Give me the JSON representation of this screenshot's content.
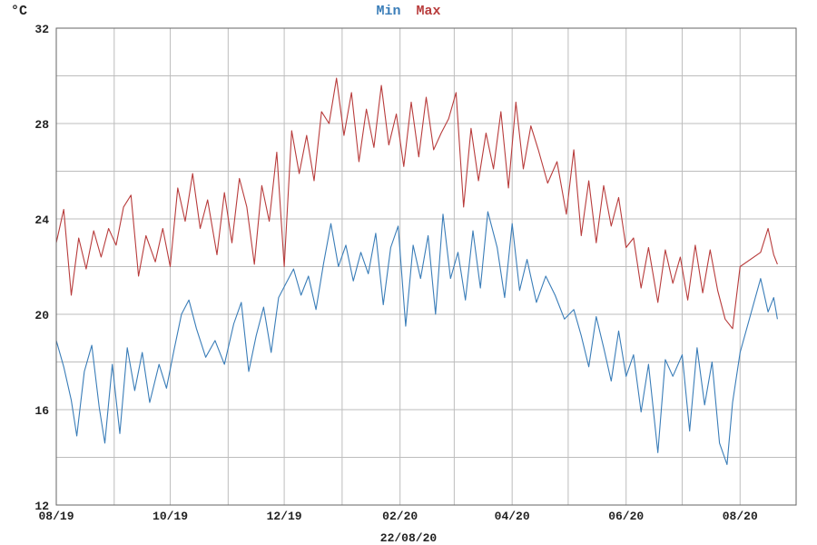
{
  "chart_data": {
    "type": "line",
    "ylabel": "°C",
    "xlabel": "22/08/20",
    "ylim": [
      12,
      32
    ],
    "y_ticks": [
      12,
      16,
      20,
      24,
      28,
      32
    ],
    "y_minor_step": 2,
    "x_domain": [
      "2019-08-01",
      "2020-08-31"
    ],
    "x_ticks": [
      {
        "date": "2019-08-01",
        "label": "08/19"
      },
      {
        "date": "2019-10-01",
        "label": "10/19"
      },
      {
        "date": "2019-12-01",
        "label": "12/19"
      },
      {
        "date": "2020-02-01",
        "label": "02/20"
      },
      {
        "date": "2020-04-01",
        "label": "04/20"
      },
      {
        "date": "2020-06-01",
        "label": "06/20"
      },
      {
        "date": "2020-08-01",
        "label": "08/20"
      }
    ],
    "x_grid_dates": [
      "2019-08-01",
      "2019-09-01",
      "2019-10-01",
      "2019-11-01",
      "2019-12-01",
      "2020-01-01",
      "2020-02-01",
      "2020-03-01",
      "2020-04-01",
      "2020-05-01",
      "2020-06-01",
      "2020-07-01",
      "2020-08-01"
    ],
    "grid": true,
    "legend_position": "top-center",
    "series": [
      {
        "name": "Min",
        "color": "#3a7db8",
        "points": [
          [
            "2019-08-01",
            18.9
          ],
          [
            "2019-08-05",
            17.8
          ],
          [
            "2019-08-09",
            16.4
          ],
          [
            "2019-08-12",
            14.9
          ],
          [
            "2019-08-16",
            17.6
          ],
          [
            "2019-08-20",
            18.7
          ],
          [
            "2019-08-24",
            16.1
          ],
          [
            "2019-08-27",
            14.6
          ],
          [
            "2019-08-31",
            17.9
          ],
          [
            "2019-09-04",
            15.0
          ],
          [
            "2019-09-08",
            18.6
          ],
          [
            "2019-09-12",
            16.8
          ],
          [
            "2019-09-16",
            18.4
          ],
          [
            "2019-09-20",
            16.3
          ],
          [
            "2019-09-25",
            17.9
          ],
          [
            "2019-09-29",
            16.9
          ],
          [
            "2019-10-03",
            18.5
          ],
          [
            "2019-10-07",
            20.0
          ],
          [
            "2019-10-11",
            20.6
          ],
          [
            "2019-10-15",
            19.4
          ],
          [
            "2019-10-20",
            18.2
          ],
          [
            "2019-10-25",
            18.9
          ],
          [
            "2019-10-30",
            17.9
          ],
          [
            "2019-11-04",
            19.6
          ],
          [
            "2019-11-08",
            20.5
          ],
          [
            "2019-11-12",
            17.6
          ],
          [
            "2019-11-16",
            19.1
          ],
          [
            "2019-11-20",
            20.3
          ],
          [
            "2019-11-24",
            18.4
          ],
          [
            "2019-11-28",
            20.7
          ],
          [
            "2019-12-02",
            21.3
          ],
          [
            "2019-12-06",
            21.9
          ],
          [
            "2019-12-10",
            20.8
          ],
          [
            "2019-12-14",
            21.6
          ],
          [
            "2019-12-18",
            20.2
          ],
          [
            "2019-12-22",
            22.1
          ],
          [
            "2019-12-26",
            23.8
          ],
          [
            "2019-12-30",
            22.0
          ],
          [
            "2020-01-03",
            22.9
          ],
          [
            "2020-01-07",
            21.4
          ],
          [
            "2020-01-11",
            22.6
          ],
          [
            "2020-01-15",
            21.7
          ],
          [
            "2020-01-19",
            23.4
          ],
          [
            "2020-01-23",
            20.4
          ],
          [
            "2020-01-27",
            22.8
          ],
          [
            "2020-01-31",
            23.7
          ],
          [
            "2020-02-04",
            19.5
          ],
          [
            "2020-02-08",
            22.9
          ],
          [
            "2020-02-12",
            21.5
          ],
          [
            "2020-02-16",
            23.3
          ],
          [
            "2020-02-20",
            20.0
          ],
          [
            "2020-02-24",
            24.2
          ],
          [
            "2020-02-28",
            21.5
          ],
          [
            "2020-03-03",
            22.6
          ],
          [
            "2020-03-07",
            20.6
          ],
          [
            "2020-03-11",
            23.5
          ],
          [
            "2020-03-15",
            21.1
          ],
          [
            "2020-03-19",
            24.3
          ],
          [
            "2020-03-24",
            22.8
          ],
          [
            "2020-03-28",
            20.7
          ],
          [
            "2020-04-01",
            23.8
          ],
          [
            "2020-04-05",
            21.0
          ],
          [
            "2020-04-09",
            22.3
          ],
          [
            "2020-04-14",
            20.5
          ],
          [
            "2020-04-19",
            21.6
          ],
          [
            "2020-04-24",
            20.8
          ],
          [
            "2020-04-29",
            19.8
          ],
          [
            "2020-05-04",
            20.2
          ],
          [
            "2020-05-08",
            19.1
          ],
          [
            "2020-05-12",
            17.8
          ],
          [
            "2020-05-16",
            19.9
          ],
          [
            "2020-05-20",
            18.6
          ],
          [
            "2020-05-24",
            17.2
          ],
          [
            "2020-05-28",
            19.3
          ],
          [
            "2020-06-01",
            17.4
          ],
          [
            "2020-06-05",
            18.3
          ],
          [
            "2020-06-09",
            15.9
          ],
          [
            "2020-06-13",
            17.9
          ],
          [
            "2020-06-18",
            14.2
          ],
          [
            "2020-06-22",
            18.1
          ],
          [
            "2020-06-26",
            17.4
          ],
          [
            "2020-07-01",
            18.3
          ],
          [
            "2020-07-05",
            15.1
          ],
          [
            "2020-07-09",
            18.6
          ],
          [
            "2020-07-13",
            16.2
          ],
          [
            "2020-07-17",
            18.0
          ],
          [
            "2020-07-21",
            14.6
          ],
          [
            "2020-07-25",
            13.7
          ],
          [
            "2020-07-28",
            16.3
          ],
          [
            "2020-08-01",
            18.4
          ],
          [
            "2020-08-12",
            21.5
          ],
          [
            "2020-08-16",
            20.1
          ],
          [
            "2020-08-19",
            20.7
          ],
          [
            "2020-08-21",
            19.8
          ]
        ]
      },
      {
        "name": "Max",
        "color": "#b83c3c",
        "points": [
          [
            "2019-08-01",
            23.0
          ],
          [
            "2019-08-05",
            24.4
          ],
          [
            "2019-08-09",
            20.8
          ],
          [
            "2019-08-13",
            23.2
          ],
          [
            "2019-08-17",
            21.9
          ],
          [
            "2019-08-21",
            23.5
          ],
          [
            "2019-08-25",
            22.4
          ],
          [
            "2019-08-29",
            23.6
          ],
          [
            "2019-09-02",
            22.9
          ],
          [
            "2019-09-06",
            24.5
          ],
          [
            "2019-09-10",
            25.0
          ],
          [
            "2019-09-14",
            21.6
          ],
          [
            "2019-09-18",
            23.3
          ],
          [
            "2019-09-23",
            22.2
          ],
          [
            "2019-09-27",
            23.6
          ],
          [
            "2019-10-01",
            22.0
          ],
          [
            "2019-10-05",
            25.3
          ],
          [
            "2019-10-09",
            23.9
          ],
          [
            "2019-10-13",
            25.9
          ],
          [
            "2019-10-17",
            23.6
          ],
          [
            "2019-10-21",
            24.8
          ],
          [
            "2019-10-26",
            22.5
          ],
          [
            "2019-10-30",
            25.1
          ],
          [
            "2019-11-03",
            23.0
          ],
          [
            "2019-11-07",
            25.7
          ],
          [
            "2019-11-11",
            24.5
          ],
          [
            "2019-11-15",
            22.1
          ],
          [
            "2019-11-19",
            25.4
          ],
          [
            "2019-11-23",
            23.9
          ],
          [
            "2019-11-27",
            26.8
          ],
          [
            "2019-12-01",
            22.0
          ],
          [
            "2019-12-05",
            27.7
          ],
          [
            "2019-12-09",
            25.9
          ],
          [
            "2019-12-13",
            27.5
          ],
          [
            "2019-12-17",
            25.6
          ],
          [
            "2019-12-21",
            28.5
          ],
          [
            "2019-12-25",
            28.0
          ],
          [
            "2019-12-29",
            29.9
          ],
          [
            "2020-01-02",
            27.5
          ],
          [
            "2020-01-06",
            29.3
          ],
          [
            "2020-01-10",
            26.4
          ],
          [
            "2020-01-14",
            28.6
          ],
          [
            "2020-01-18",
            27.0
          ],
          [
            "2020-01-22",
            29.6
          ],
          [
            "2020-01-26",
            27.1
          ],
          [
            "2020-01-30",
            28.4
          ],
          [
            "2020-02-03",
            26.2
          ],
          [
            "2020-02-07",
            28.9
          ],
          [
            "2020-02-11",
            26.6
          ],
          [
            "2020-02-15",
            29.1
          ],
          [
            "2020-02-19",
            26.9
          ],
          [
            "2020-02-23",
            27.6
          ],
          [
            "2020-02-27",
            28.2
          ],
          [
            "2020-03-02",
            29.3
          ],
          [
            "2020-03-06",
            24.5
          ],
          [
            "2020-03-10",
            27.8
          ],
          [
            "2020-03-14",
            25.6
          ],
          [
            "2020-03-18",
            27.6
          ],
          [
            "2020-03-22",
            26.1
          ],
          [
            "2020-03-26",
            28.5
          ],
          [
            "2020-03-30",
            25.3
          ],
          [
            "2020-04-03",
            28.9
          ],
          [
            "2020-04-07",
            26.1
          ],
          [
            "2020-04-11",
            27.9
          ],
          [
            "2020-04-15",
            26.9
          ],
          [
            "2020-04-20",
            25.5
          ],
          [
            "2020-04-25",
            26.4
          ],
          [
            "2020-04-30",
            24.2
          ],
          [
            "2020-05-04",
            26.9
          ],
          [
            "2020-05-08",
            23.3
          ],
          [
            "2020-05-12",
            25.6
          ],
          [
            "2020-05-16",
            23.0
          ],
          [
            "2020-05-20",
            25.4
          ],
          [
            "2020-05-24",
            23.7
          ],
          [
            "2020-05-28",
            24.9
          ],
          [
            "2020-06-01",
            22.8
          ],
          [
            "2020-06-05",
            23.2
          ],
          [
            "2020-06-09",
            21.1
          ],
          [
            "2020-06-13",
            22.8
          ],
          [
            "2020-06-18",
            20.5
          ],
          [
            "2020-06-22",
            22.7
          ],
          [
            "2020-06-26",
            21.3
          ],
          [
            "2020-06-30",
            22.4
          ],
          [
            "2020-07-04",
            20.6
          ],
          [
            "2020-07-08",
            22.9
          ],
          [
            "2020-07-12",
            20.9
          ],
          [
            "2020-07-16",
            22.7
          ],
          [
            "2020-07-20",
            21.0
          ],
          [
            "2020-07-24",
            19.8
          ],
          [
            "2020-07-28",
            19.4
          ],
          [
            "2020-08-01",
            22.0
          ],
          [
            "2020-08-12",
            22.6
          ],
          [
            "2020-08-16",
            23.6
          ],
          [
            "2020-08-19",
            22.5
          ],
          [
            "2020-08-21",
            22.1
          ]
        ]
      }
    ]
  }
}
